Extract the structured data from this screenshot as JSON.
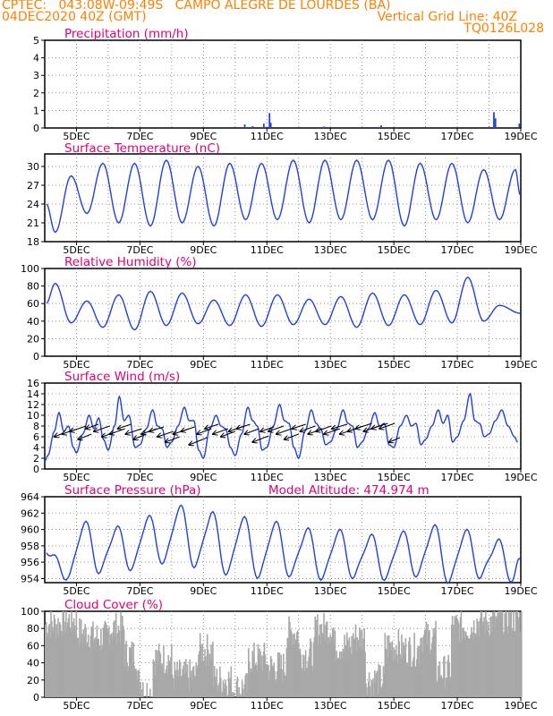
{
  "header": {
    "line1": "CPTEC:   043:08W-09:49S   CAMPO ALEGRE DE LOURDES (BA)",
    "line2_left": "04DEC2020 40Z (GMT)",
    "line2_right": "Vertical Grid Line: 40Z",
    "line3_right": "TQ0126L028"
  },
  "colors": {
    "header": "#ff8000",
    "title": "#e0007a",
    "line": "#2040e0",
    "cloud": "#a8a8a8",
    "arrow": "#000000"
  },
  "x_ticks": [
    "5DEC",
    "7DEC",
    "9DEC",
    "11DEC",
    "13DEC",
    "15DEC",
    "17DEC",
    "19DEC"
  ],
  "chart_data": [
    {
      "type": "bar",
      "title": "Precipitation (mm/h)",
      "ylim": [
        0,
        5
      ],
      "yticks": [
        "0",
        "1",
        "2",
        "3",
        "4",
        "5"
      ],
      "grid": true,
      "x_range_days": [
        4.1,
        19.0
      ],
      "spikes": [
        {
          "day": 10.3,
          "value": 0.2
        },
        {
          "day": 10.55,
          "value": 0.1
        },
        {
          "day": 10.9,
          "value": 0.25
        },
        {
          "day": 11.08,
          "value": 0.85
        },
        {
          "day": 11.12,
          "value": 0.3
        },
        {
          "day": 12.8,
          "value": 0.08
        },
        {
          "day": 14.6,
          "value": 0.15
        },
        {
          "day": 16.6,
          "value": 0.05
        },
        {
          "day": 18.0,
          "value": 0.08
        },
        {
          "day": 18.15,
          "value": 0.9
        },
        {
          "day": 18.2,
          "value": 0.55
        },
        {
          "day": 18.6,
          "value": 0.05
        },
        {
          "day": 18.95,
          "value": 0.25
        }
      ]
    },
    {
      "type": "line",
      "title": "Surface Temperature (nC)",
      "ylim": [
        18,
        32
      ],
      "yticks": [
        "18",
        "21",
        "24",
        "27",
        "30"
      ],
      "grid": true,
      "min_day": 4.33,
      "phase": 0.75,
      "mins": [
        19.5,
        22.5,
        21.0,
        20.5,
        21.0,
        20.5,
        21.5,
        21.5,
        21.0,
        21.5,
        21.5,
        20.5,
        21.5,
        21.0,
        21.5
      ],
      "maxs": [
        28.5,
        30.5,
        30.5,
        31.0,
        30.0,
        30.5,
        30.5,
        31.0,
        31.0,
        31.0,
        31.0,
        30.5,
        30.5,
        29.5,
        29.5
      ]
    },
    {
      "type": "line",
      "title": "Relative Humidity (%)",
      "ylim": [
        0,
        100
      ],
      "yticks": [
        "0",
        "20",
        "40",
        "60",
        "80",
        "100"
      ],
      "grid": true,
      "max_day": 4.33,
      "phase": 0.75,
      "maxs": [
        83,
        63,
        70,
        74,
        72,
        64,
        70,
        70,
        65,
        68,
        72,
        70,
        75,
        90,
        58
      ],
      "mins": [
        38,
        33,
        30,
        35,
        37,
        35,
        34,
        36,
        36,
        33,
        35,
        36,
        38,
        40
      ]
    },
    {
      "type": "line",
      "title": "Surface Wind (m/s)",
      "ylim": [
        0,
        16
      ],
      "yticks": [
        "0",
        "2",
        "4",
        "6",
        "8",
        "10",
        "12",
        "14",
        "16"
      ],
      "grid": true,
      "base_day": 4.0,
      "period": 1.0,
      "curve": [
        [
          0.0,
          1.5
        ],
        [
          0.1,
          2.5
        ],
        [
          0.3,
          7.0
        ],
        [
          0.45,
          10.5
        ],
        [
          0.6,
          7.0
        ],
        [
          0.75,
          8.0
        ],
        [
          0.9,
          4.0
        ],
        [
          1.0,
          3.0
        ],
        [
          1.2,
          6.5
        ],
        [
          1.4,
          10.0
        ],
        [
          1.55,
          7.5
        ],
        [
          1.7,
          9.5
        ],
        [
          1.85,
          5.5
        ],
        [
          2.0,
          3.5
        ],
        [
          2.2,
          8.0
        ],
        [
          2.35,
          13.5
        ],
        [
          2.5,
          9.0
        ],
        [
          2.65,
          10.0
        ],
        [
          2.85,
          4.0
        ],
        [
          3.0,
          4.5
        ],
        [
          3.2,
          7.5
        ],
        [
          3.4,
          11.0
        ],
        [
          3.55,
          8.0
        ],
        [
          3.7,
          7.5
        ],
        [
          3.85,
          4.0
        ],
        [
          4.0,
          5.0
        ],
        [
          4.2,
          8.0
        ],
        [
          4.4,
          11.5
        ],
        [
          4.55,
          9.0
        ],
        [
          4.7,
          9.0
        ],
        [
          4.85,
          3.5
        ],
        [
          5.0,
          2.0
        ],
        [
          5.2,
          7.5
        ],
        [
          5.4,
          10.0
        ],
        [
          5.55,
          8.0
        ],
        [
          5.7,
          7.5
        ],
        [
          5.85,
          4.0
        ],
        [
          6.0,
          2.5
        ],
        [
          6.2,
          6.5
        ],
        [
          6.4,
          11.5
        ],
        [
          6.55,
          9.0
        ],
        [
          6.7,
          8.0
        ],
        [
          6.85,
          3.5
        ],
        [
          7.0,
          4.0
        ],
        [
          7.2,
          8.0
        ],
        [
          7.4,
          12.0
        ],
        [
          7.55,
          9.0
        ],
        [
          7.7,
          8.5
        ],
        [
          7.85,
          4.0
        ],
        [
          8.0,
          2.0
        ],
        [
          8.2,
          7.0
        ],
        [
          8.4,
          11.0
        ],
        [
          8.55,
          8.5
        ],
        [
          8.7,
          7.5
        ],
        [
          8.85,
          4.5
        ],
        [
          9.0,
          5.0
        ],
        [
          9.2,
          7.5
        ],
        [
          9.4,
          11.0
        ],
        [
          9.55,
          8.5
        ],
        [
          9.7,
          8.0
        ],
        [
          9.85,
          4.0
        ],
        [
          10.0,
          5.0
        ],
        [
          10.2,
          7.5
        ],
        [
          10.4,
          10.5
        ],
        [
          10.55,
          8.0
        ],
        [
          10.7,
          8.5
        ],
        [
          10.85,
          4.5
        ],
        [
          11.0,
          4.0
        ],
        [
          11.2,
          8.0
        ],
        [
          11.4,
          10.0
        ],
        [
          11.55,
          8.0
        ],
        [
          11.7,
          8.5
        ],
        [
          11.85,
          4.5
        ],
        [
          12.0,
          5.5
        ],
        [
          12.2,
          8.0
        ],
        [
          12.4,
          11.0
        ],
        [
          12.55,
          8.5
        ],
        [
          12.7,
          10.0
        ],
        [
          12.85,
          5.0
        ],
        [
          13.0,
          6.0
        ],
        [
          13.2,
          9.0
        ],
        [
          13.4,
          14.0
        ],
        [
          13.55,
          9.0
        ],
        [
          13.7,
          8.5
        ],
        [
          13.85,
          6.0
        ],
        [
          14.0,
          6.5
        ],
        [
          14.2,
          9.0
        ],
        [
          14.4,
          11.0
        ],
        [
          14.6,
          8.0
        ],
        [
          14.8,
          6.0
        ],
        [
          14.9,
          5.0
        ]
      ],
      "arrows": [
        {
          "day": 4.3,
          "y": 6.0,
          "dx": 10,
          "dy": 4
        },
        {
          "day": 4.55,
          "y": 6.5,
          "dx": 14,
          "dy": 5
        },
        {
          "day": 4.8,
          "y": 7.0,
          "dx": 18,
          "dy": 6
        },
        {
          "day": 5.05,
          "y": 5.5,
          "dx": 15,
          "dy": 6
        },
        {
          "day": 5.3,
          "y": 7.5,
          "dx": 14,
          "dy": 5
        },
        {
          "day": 5.55,
          "y": 7.0,
          "dx": 18,
          "dy": 6
        },
        {
          "day": 5.8,
          "y": 6.0,
          "dx": 15,
          "dy": 5
        },
        {
          "day": 6.05,
          "y": 6.5,
          "dx": 17,
          "dy": 6
        },
        {
          "day": 6.3,
          "y": 7.5,
          "dx": 15,
          "dy": 5
        },
        {
          "day": 6.55,
          "y": 6.5,
          "dx": 18,
          "dy": 6
        },
        {
          "day": 6.8,
          "y": 5.5,
          "dx": 14,
          "dy": 6
        },
        {
          "day": 7.05,
          "y": 6.5,
          "dx": 17,
          "dy": 6
        },
        {
          "day": 7.3,
          "y": 7.0,
          "dx": 16,
          "dy": 5
        },
        {
          "day": 7.55,
          "y": 6.0,
          "dx": 18,
          "dy": 6
        },
        {
          "day": 7.8,
          "y": 5.0,
          "dx": 16,
          "dy": 6
        },
        {
          "day": 8.05,
          "y": 6.5,
          "dx": 18,
          "dy": 6
        },
        {
          "day": 8.3,
          "y": 7.0,
          "dx": 15,
          "dy": 5
        },
        {
          "day": 8.55,
          "y": 4.5,
          "dx": 20,
          "dy": 8
        },
        {
          "day": 8.8,
          "y": 6.5,
          "dx": 16,
          "dy": 6
        },
        {
          "day": 9.05,
          "y": 7.5,
          "dx": 15,
          "dy": 5
        },
        {
          "day": 9.3,
          "y": 6.5,
          "dx": 17,
          "dy": 6
        },
        {
          "day": 9.55,
          "y": 6.0,
          "dx": 16,
          "dy": 6
        },
        {
          "day": 9.8,
          "y": 7.0,
          "dx": 17,
          "dy": 6
        },
        {
          "day": 10.05,
          "y": 7.5,
          "dx": 15,
          "dy": 5
        },
        {
          "day": 10.3,
          "y": 6.5,
          "dx": 16,
          "dy": 6
        },
        {
          "day": 10.55,
          "y": 5.0,
          "dx": 18,
          "dy": 7
        },
        {
          "day": 10.8,
          "y": 7.0,
          "dx": 15,
          "dy": 5
        },
        {
          "day": 11.05,
          "y": 7.0,
          "dx": 17,
          "dy": 6
        },
        {
          "day": 11.3,
          "y": 6.5,
          "dx": 17,
          "dy": 6
        },
        {
          "day": 11.55,
          "y": 5.5,
          "dx": 16,
          "dy": 6
        },
        {
          "day": 11.8,
          "y": 7.5,
          "dx": 15,
          "dy": 5
        },
        {
          "day": 12.05,
          "y": 7.0,
          "dx": 17,
          "dy": 6
        },
        {
          "day": 12.3,
          "y": 6.5,
          "dx": 16,
          "dy": 6
        },
        {
          "day": 12.55,
          "y": 7.0,
          "dx": 17,
          "dy": 6
        },
        {
          "day": 12.8,
          "y": 6.5,
          "dx": 18,
          "dy": 6
        },
        {
          "day": 13.05,
          "y": 7.5,
          "dx": 17,
          "dy": 5
        },
        {
          "day": 13.3,
          "y": 6.5,
          "dx": 18,
          "dy": 6
        },
        {
          "day": 13.55,
          "y": 7.0,
          "dx": 17,
          "dy": 6
        },
        {
          "day": 13.8,
          "y": 7.5,
          "dx": 18,
          "dy": 6
        },
        {
          "day": 14.05,
          "y": 7.0,
          "dx": 17,
          "dy": 6
        },
        {
          "day": 14.3,
          "y": 7.5,
          "dx": 18,
          "dy": 6
        },
        {
          "day": 14.55,
          "y": 7.5,
          "dx": 17,
          "dy": 6
        },
        {
          "day": 14.85,
          "y": 5.0,
          "dx": 12,
          "dy": 5
        }
      ]
    },
    {
      "type": "line",
      "title": "Surface Pressure (hPa)",
      "annotation": "Model Altitude: 474.974  m",
      "ylim": [
        953.5,
        964
      ],
      "yticks": [
        "954",
        "956",
        "958",
        "960",
        "962",
        "964"
      ],
      "grid": true,
      "min_day": 4.75,
      "mins": [
        954.2,
        954.8,
        955.2,
        956.0,
        955.5,
        954.6,
        954.2,
        954.4,
        954.0,
        954.2,
        954.0,
        954.4,
        953.6,
        954.2,
        953.8
      ],
      "maxs": [
        960.8,
        960.2,
        961.5,
        962.8,
        962.0,
        961.4,
        960.8,
        960.0,
        959.8,
        959.2,
        959.6,
        960.4,
        959.8,
        958.6
      ]
    },
    {
      "type": "bar",
      "title": "Cloud Cover (%)",
      "ylim": [
        0,
        100
      ],
      "yticks": [
        "0",
        "20",
        "40",
        "60",
        "80",
        "100"
      ],
      "grid": true,
      "base_day": 4.0,
      "step_days": 0.05,
      "segments": [
        {
          "from": 4.0,
          "to": 4.5,
          "level": 85
        },
        {
          "from": 4.5,
          "to": 5.0,
          "level": 90
        },
        {
          "from": 5.0,
          "to": 5.5,
          "level": 75
        },
        {
          "from": 5.5,
          "to": 6.0,
          "level": 70
        },
        {
          "from": 6.0,
          "to": 6.5,
          "level": 80
        },
        {
          "from": 6.5,
          "to": 6.9,
          "level": 50
        },
        {
          "from": 6.9,
          "to": 7.1,
          "level": 18
        },
        {
          "from": 7.1,
          "to": 7.4,
          "level": 5
        },
        {
          "from": 7.4,
          "to": 8.0,
          "level": 45
        },
        {
          "from": 8.0,
          "to": 8.8,
          "level": 25
        },
        {
          "from": 8.8,
          "to": 9.3,
          "level": 55
        },
        {
          "from": 9.3,
          "to": 9.9,
          "level": 20
        },
        {
          "from": 9.9,
          "to": 10.4,
          "level": 10
        },
        {
          "from": 10.4,
          "to": 11.0,
          "level": 45
        },
        {
          "from": 11.0,
          "to": 11.6,
          "level": 35
        },
        {
          "from": 11.6,
          "to": 12.0,
          "level": 75
        },
        {
          "from": 12.0,
          "to": 12.5,
          "level": 50
        },
        {
          "from": 12.5,
          "to": 13.1,
          "level": 80
        },
        {
          "from": 13.1,
          "to": 13.7,
          "level": 60
        },
        {
          "from": 13.7,
          "to": 14.1,
          "level": 70
        },
        {
          "from": 14.1,
          "to": 14.7,
          "level": 20
        },
        {
          "from": 14.7,
          "to": 15.2,
          "level": 60
        },
        {
          "from": 15.2,
          "to": 15.8,
          "level": 55
        },
        {
          "from": 15.8,
          "to": 16.3,
          "level": 70
        },
        {
          "from": 16.3,
          "to": 16.8,
          "level": 30
        },
        {
          "from": 16.8,
          "to": 17.5,
          "level": 82
        },
        {
          "from": 17.5,
          "to": 18.3,
          "level": 88
        },
        {
          "from": 18.3,
          "to": 19.0,
          "level": 92
        }
      ]
    }
  ]
}
